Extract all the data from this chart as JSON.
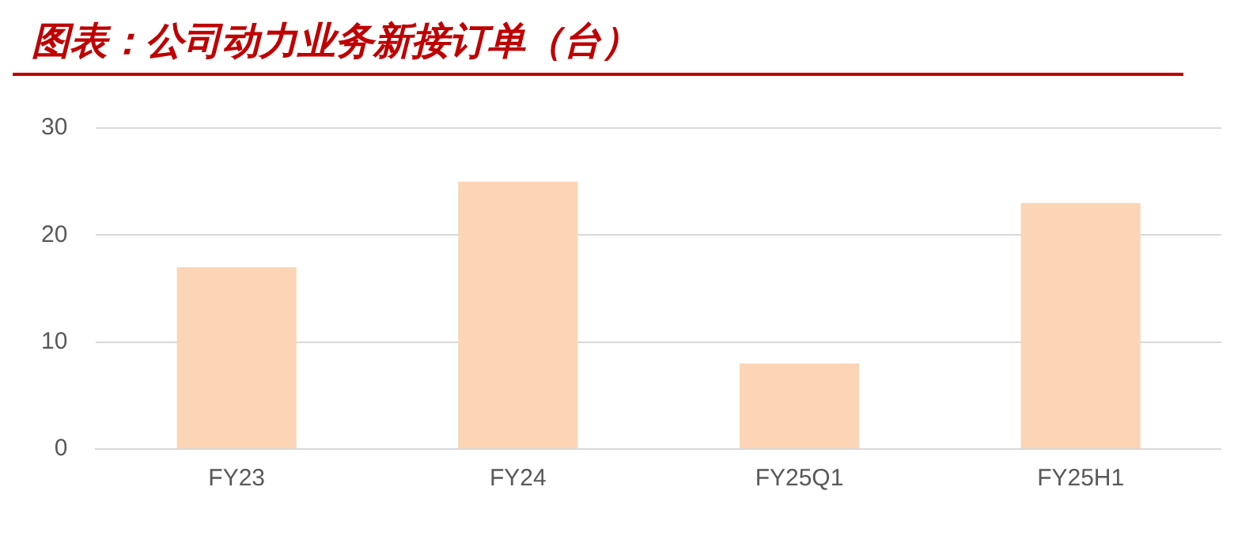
{
  "chart_data": {
    "type": "bar",
    "title": "图表：公司动力业务新接订单（台）",
    "categories": [
      "FY23",
      "FY24",
      "FY25Q1",
      "FY25H1"
    ],
    "values": [
      17,
      25,
      8,
      23
    ],
    "color": "#fbd5b5",
    "ylim": [
      0,
      30
    ],
    "yticks": [
      0,
      10,
      20,
      30
    ],
    "grid": "y",
    "legend": false
  }
}
